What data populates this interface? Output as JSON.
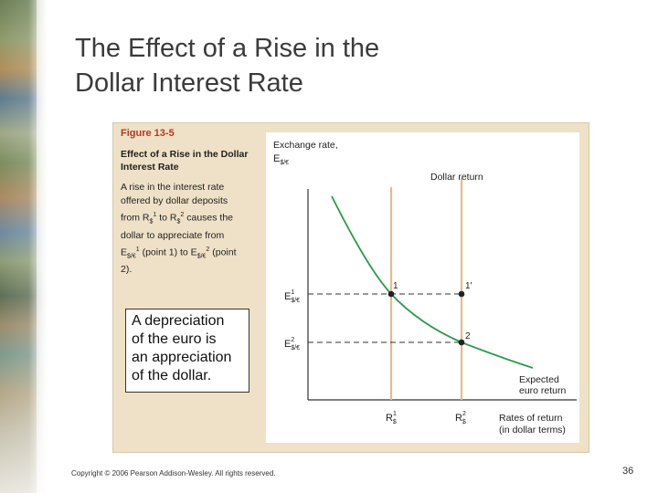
{
  "slide": {
    "title_line1": "The Effect of a Rise in the",
    "title_line2": "Dollar Interest Rate",
    "footer": "Copyright © 2006 Pearson Addison-Wesley. All rights reserved.",
    "page_number": "36"
  },
  "figure": {
    "label": "Figure 13-5",
    "caption_title_line1": "Effect of a Rise in the Dollar",
    "caption_title_line2": "Interest Rate",
    "caption_body": "A rise in the interest rate offered by dollar deposits from R$1 to R$2 causes the dollar to appreciate from E$/€1 (point 1) to E$/€2 (point 2).",
    "caption_lines": [
      "A rise in the interest rate",
      "offered by dollar deposits",
      "from R",
      "dollar to appreciate from",
      "E",
      "2)."
    ],
    "caption_fragments": {
      "to": " to R",
      "causes": " causes the",
      "point1_to": " (point 1) to E",
      "point_end": " (point",
      "sup1": "1",
      "sup2": "2",
      "sub_dollar": "$",
      "sub_pair": "$/€"
    }
  },
  "callout": {
    "line1": "A depreciation",
    "line2": "of the euro is",
    "line3": "an appreciation",
    "line4": "of the dollar."
  },
  "graph": {
    "y_axis_label_line1": "Exchange rate,",
    "y_axis_label_E": "E",
    "y_axis_label_sub": "$/€",
    "x_axis_label_line1": "Rates of return",
    "x_axis_label_line2": "(in dollar terms)",
    "dollar_return_label": "Dollar return",
    "expected_euro_label_line1": "Expected",
    "expected_euro_label_line2": "euro return",
    "tick_E": "E",
    "tick_E1_sup": "1",
    "tick_E2_sup": "2",
    "tick_E_sub": "$/€",
    "tick_R": "R",
    "tick_R1_sup": "1",
    "tick_R2_sup": "2",
    "tick_R_sub": "$",
    "point1_label": "1",
    "point1prime_label": "1'",
    "point2_label": "2",
    "colors": {
      "curve": "#2a9a4a",
      "vertical_lines": "#e8b98a",
      "dashed": "#333333",
      "heading": "#b33a25",
      "panel": "#efe1c7"
    }
  }
}
